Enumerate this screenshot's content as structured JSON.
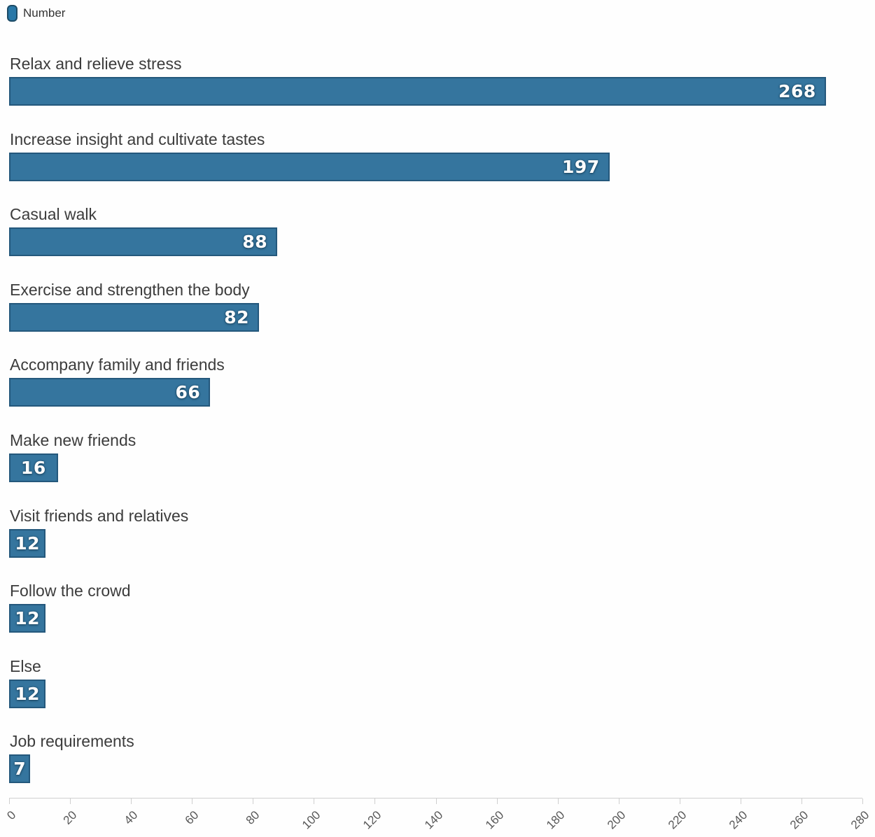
{
  "legend": {
    "label": "Number"
  },
  "colors": {
    "bar_fill": "#35759e",
    "bar_border": "#24587c",
    "label_text": "#3c3c3c",
    "value_text": "#ffffff",
    "axis_line": "#cfcfcf",
    "tick_text": "#595959",
    "legend_fill": "#2878a8",
    "legend_border": "#1d4b66",
    "background": "#fefefe"
  },
  "chart_data": {
    "type": "bar",
    "orientation": "horizontal",
    "series": [
      {
        "name": "Number",
        "values": [
          268,
          197,
          88,
          82,
          66,
          16,
          12,
          12,
          12,
          7
        ]
      }
    ],
    "categories": [
      "Relax and relieve stress",
      "Increase insight and cultivate tastes",
      "Casual walk",
      "Exercise and strengthen the body",
      "Accompany family and friends",
      "Make new friends",
      "Visit friends and relatives",
      "Follow the crowd",
      "Else",
      "Job requirements"
    ],
    "title": "",
    "xlabel": "",
    "ylabel": "",
    "xlim": [
      0,
      280
    ],
    "x_ticks": [
      0,
      20,
      40,
      60,
      80,
      100,
      120,
      140,
      160,
      180,
      200,
      220,
      240,
      260,
      280
    ],
    "tick_label_rotation_deg": 45,
    "grid": false,
    "legend_position": "top-left",
    "value_labels": "inside-end"
  }
}
